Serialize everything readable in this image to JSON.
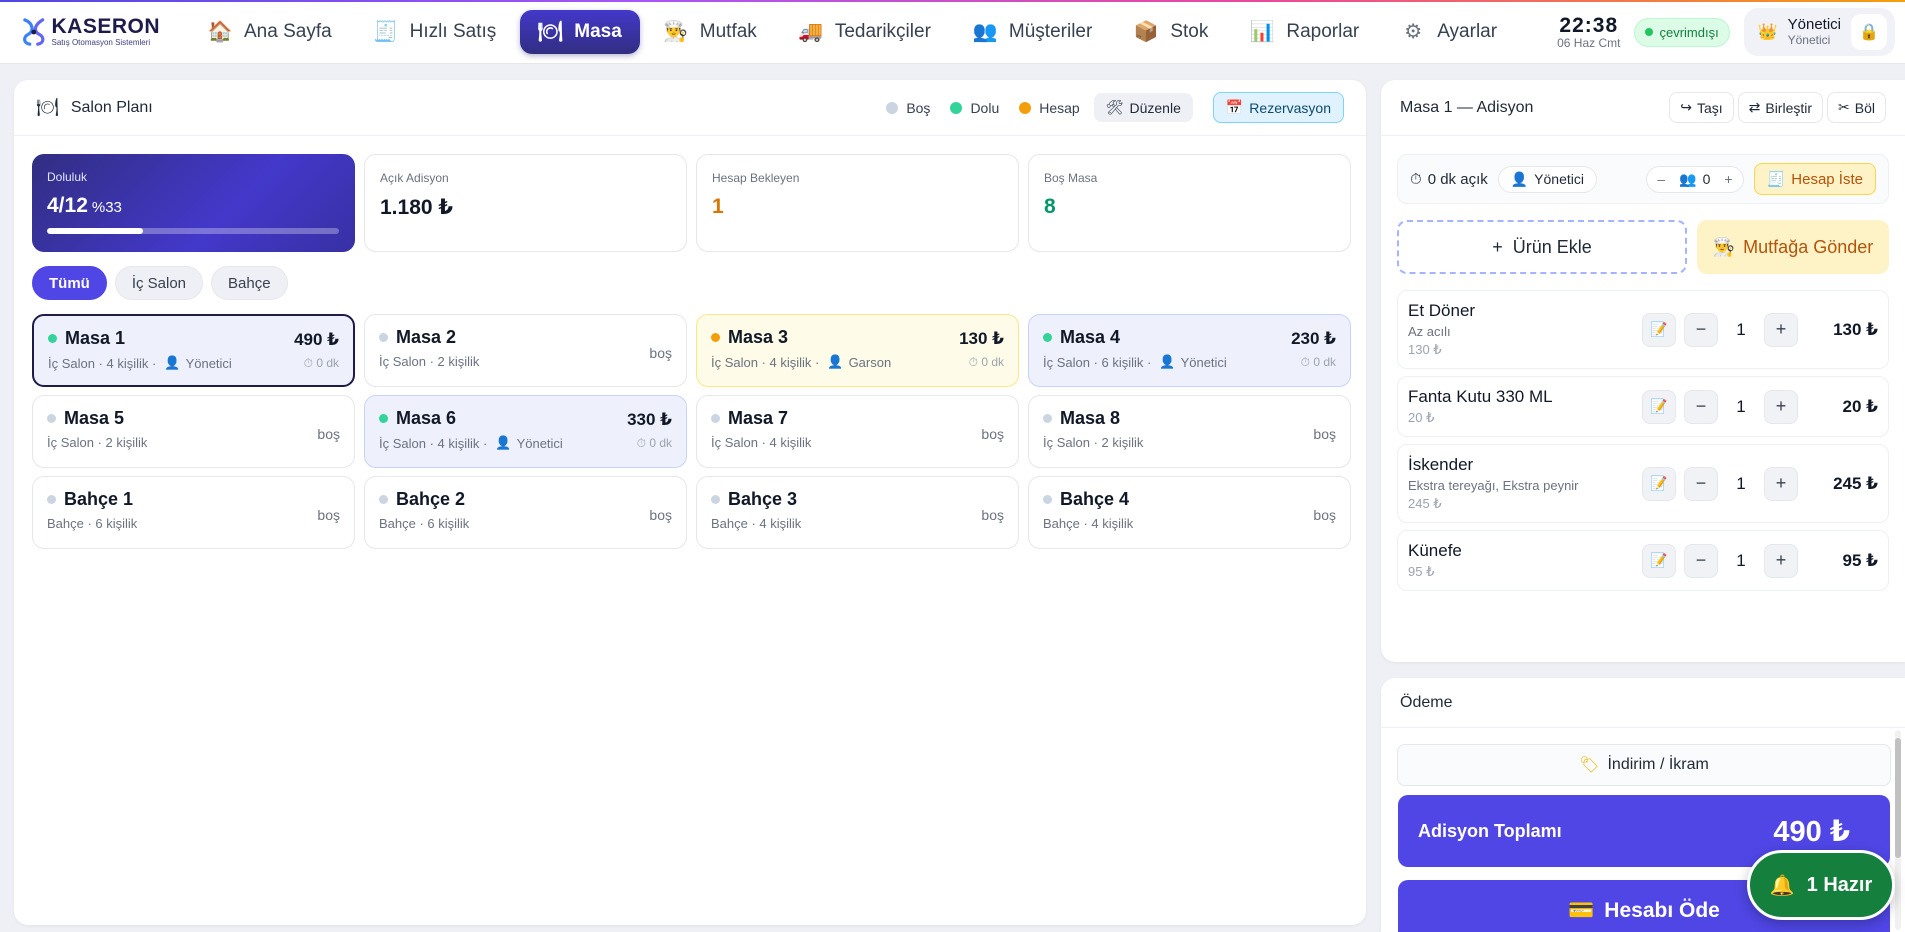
{
  "app": {
    "name": "KASERON",
    "subtitle": "Satış Otomasyon Sistemleri"
  },
  "nav": [
    {
      "label": "Ana Sayfa",
      "icon": "home-icon",
      "active": false
    },
    {
      "label": "Hızlı Satış",
      "icon": "receipt-icon",
      "active": false
    },
    {
      "label": "Masa",
      "icon": "plate-icon",
      "active": true
    },
    {
      "label": "Mutfak",
      "icon": "chef-icon",
      "active": false
    },
    {
      "label": "Tedarikçiler",
      "icon": "truck-icon",
      "active": false
    },
    {
      "label": "Müşteriler",
      "icon": "users-icon",
      "active": false
    },
    {
      "label": "Stok",
      "icon": "box-icon",
      "active": false
    },
    {
      "label": "Raporlar",
      "icon": "chart-icon",
      "active": false
    },
    {
      "label": "Ayarlar",
      "icon": "gear-icon",
      "active": false
    }
  ],
  "header": {
    "time": "22:38",
    "date": "06 Haz Cmt",
    "status": "çevrimdışı",
    "user_name": "Yönetici",
    "user_role": "Yönetici"
  },
  "floor": {
    "title": "Salon Planı",
    "legend": [
      {
        "label": "Boş",
        "color": "#cbd5e1"
      },
      {
        "label": "Dolu",
        "color": "#34d399"
      },
      {
        "label": "Hesap",
        "color": "#f59e0b"
      }
    ],
    "edit_label": "Düzenle",
    "reservation_label": "Rezervasyon"
  },
  "stats": {
    "occupancy_label": "Doluluk",
    "occupancy_value": "4/12",
    "occupancy_percent": "%33",
    "occupancy_fraction": 0.33,
    "open_label": "Açık Adisyon",
    "open_value": "1.180 ₺",
    "pending_label": "Hesap Bekleyen",
    "pending_value": "1",
    "empty_label": "Boş Masa",
    "empty_value": "8"
  },
  "filters": [
    "Tümü",
    "İç Salon",
    "Bahçe"
  ],
  "tables": [
    {
      "name": "Masa 1",
      "meta": "İç Salon · 4 kişilik ·",
      "waiter": "Yönetici",
      "amount": "490 ₺",
      "time": "0 dk",
      "state": "dolu",
      "selected": true
    },
    {
      "name": "Masa 2",
      "meta": "İç Salon · 2 kişilik",
      "waiter": "",
      "amount": "",
      "time": "",
      "state": "bos",
      "empty": "boş"
    },
    {
      "name": "Masa 3",
      "meta": "İç Salon · 4 kişilik ·",
      "waiter": "Garson",
      "amount": "130 ₺",
      "time": "0 dk",
      "state": "hesap"
    },
    {
      "name": "Masa 4",
      "meta": "İç Salon · 6 kişilik ·",
      "waiter": "Yönetici",
      "amount": "230 ₺",
      "time": "0 dk",
      "state": "dolu"
    },
    {
      "name": "Masa 5",
      "meta": "İç Salon · 2 kişilik",
      "waiter": "",
      "amount": "",
      "time": "",
      "state": "bos",
      "empty": "boş"
    },
    {
      "name": "Masa 6",
      "meta": "İç Salon · 4 kişilik ·",
      "waiter": "Yönetici",
      "amount": "330 ₺",
      "time": "0 dk",
      "state": "dolu"
    },
    {
      "name": "Masa 7",
      "meta": "İç Salon · 4 kişilik",
      "waiter": "",
      "amount": "",
      "time": "",
      "state": "bos",
      "empty": "boş"
    },
    {
      "name": "Masa 8",
      "meta": "İç Salon · 2 kişilik",
      "waiter": "",
      "amount": "",
      "time": "",
      "state": "bos",
      "empty": "boş"
    },
    {
      "name": "Bahçe 1",
      "meta": "Bahçe · 6 kişilik",
      "waiter": "",
      "amount": "",
      "time": "",
      "state": "bos",
      "empty": "boş"
    },
    {
      "name": "Bahçe 2",
      "meta": "Bahçe · 6 kişilik",
      "waiter": "",
      "amount": "",
      "time": "",
      "state": "bos",
      "empty": "boş"
    },
    {
      "name": "Bahçe 3",
      "meta": "Bahçe · 4 kişilik",
      "waiter": "",
      "amount": "",
      "time": "",
      "state": "bos",
      "empty": "boş"
    },
    {
      "name": "Bahçe 4",
      "meta": "Bahçe · 4 kişilik",
      "waiter": "",
      "amount": "",
      "time": "",
      "state": "bos",
      "empty": "boş"
    }
  ],
  "order": {
    "title": "Masa 1 — Adisyon",
    "move_label": "Taşı",
    "merge_label": "Birleştir",
    "split_label": "Böl",
    "open_time": "0 dk açık",
    "waiter": "Yönetici",
    "guests": "0",
    "minus": "–",
    "plus": "+",
    "bill_label": "Hesap İste",
    "add_label": "Ürün Ekle",
    "kitchen_label": "Mutfağa Gönder",
    "items": [
      {
        "name": "Et Döner",
        "note": "Az acılı",
        "unit_price": "130 ₺",
        "qty": "1",
        "total": "130 ₺"
      },
      {
        "name": "Fanta Kutu 330 ML",
        "note": "",
        "unit_price": "20 ₺",
        "qty": "1",
        "total": "20 ₺"
      },
      {
        "name": "İskender",
        "note": "Ekstra tereyağı, Ekstra peynir",
        "unit_price": "245 ₺",
        "qty": "1",
        "total": "245 ₺"
      },
      {
        "name": "Künefe",
        "note": "",
        "unit_price": "95 ₺",
        "qty": "1",
        "total": "95 ₺"
      }
    ]
  },
  "payment": {
    "title": "Ödeme",
    "discount_label": "İndirim / İkram",
    "total_label": "Adisyon Toplamı",
    "total_value": "490 ₺",
    "pay_label": "Hesabı Öde"
  },
  "toast": {
    "label": "1 Hazır"
  },
  "colors": {
    "accent": "#4f46e5",
    "occupied": "#34d399",
    "bill": "#f59e0b",
    "empty": "#cbd5e1"
  }
}
